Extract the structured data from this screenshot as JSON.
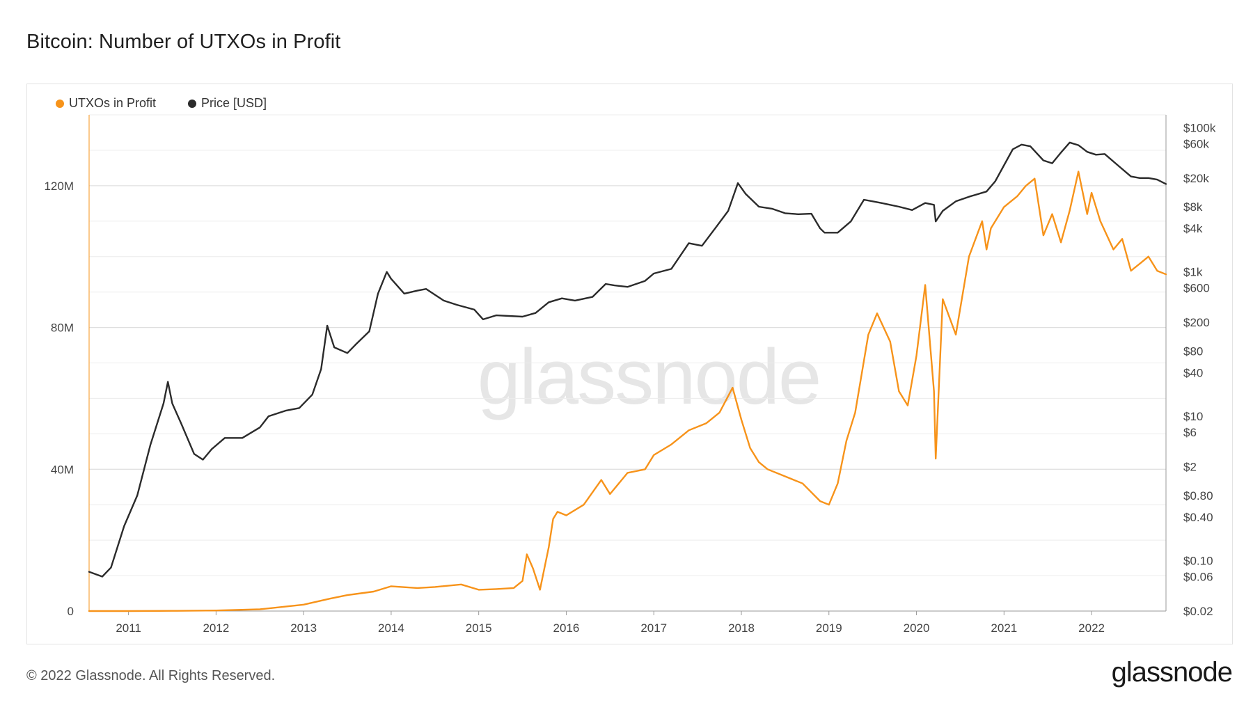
{
  "page": {
    "title": "Bitcoin: Number of UTXOs in Profit",
    "footer_copyright": "© 2022 Glassnode. All Rights Reserved.",
    "footer_logo": "glassnode",
    "watermark": "glassnode"
  },
  "colors": {
    "utxo": "#f7931a",
    "price": "#2b2b2b",
    "grid": "#ececec",
    "axis": "#9a9a9a"
  },
  "chart_data": {
    "type": "line",
    "title": "Bitcoin: Number of UTXOs in Profit",
    "legend_position": "top-left",
    "grid": true,
    "x_ticks": [
      "2011",
      "2012",
      "2013",
      "2014",
      "2015",
      "2016",
      "2017",
      "2018",
      "2019",
      "2020",
      "2021",
      "2022"
    ],
    "x_range": [
      2010.55,
      2022.85
    ],
    "y_left": {
      "scale": "linear",
      "range": [
        0,
        140000000
      ],
      "ticks": [
        0,
        40000000,
        80000000,
        120000000
      ],
      "tick_labels": [
        "0",
        "40M",
        "80M",
        "120M"
      ]
    },
    "y_right": {
      "scale": "log",
      "range": [
        0.02,
        150000
      ],
      "ticks": [
        100000,
        60000,
        20000,
        8000,
        4000,
        1000,
        600,
        200,
        80,
        40,
        10,
        6,
        2,
        0.8,
        0.4,
        0.1,
        0.06,
        0.02
      ],
      "tick_labels": [
        "$100k",
        "$60k",
        "$20k",
        "$8k",
        "$4k",
        "$1k",
        "$600",
        "$200",
        "$80",
        "$40",
        "$10",
        "$6",
        "$2",
        "$0.80",
        "$0.40",
        "$0.10",
        "$0.06",
        "$0.02"
      ]
    },
    "series": [
      {
        "name": "UTXOs in Profit",
        "axis": "left",
        "x": [
          2010.55,
          2011.0,
          2011.5,
          2012.0,
          2012.5,
          2013.0,
          2013.3,
          2013.5,
          2013.8,
          2014.0,
          2014.3,
          2014.5,
          2014.8,
          2015.0,
          2015.2,
          2015.4,
          2015.5,
          2015.55,
          2015.62,
          2015.7,
          2015.8,
          2015.85,
          2015.9,
          2016.0,
          2016.2,
          2016.4,
          2016.5,
          2016.6,
          2016.7,
          2016.9,
          2017.0,
          2017.2,
          2017.4,
          2017.6,
          2017.75,
          2017.9,
          2018.0,
          2018.1,
          2018.2,
          2018.3,
          2018.5,
          2018.7,
          2018.9,
          2019.0,
          2019.1,
          2019.2,
          2019.3,
          2019.45,
          2019.55,
          2019.7,
          2019.8,
          2019.9,
          2020.0,
          2020.1,
          2020.2,
          2020.22,
          2020.3,
          2020.45,
          2020.6,
          2020.75,
          2020.8,
          2020.85,
          2021.0,
          2021.15,
          2021.25,
          2021.35,
          2021.45,
          2021.55,
          2021.65,
          2021.75,
          2021.85,
          2021.95,
          2022.0,
          2022.1,
          2022.25,
          2022.35,
          2022.45,
          2022.55,
          2022.65,
          2022.75,
          2022.85
        ],
        "values": [
          0,
          0,
          50000,
          150000,
          500000,
          1800000,
          3500000,
          4500000,
          5500000,
          7000000,
          6500000,
          6800000,
          7500000,
          6000000,
          6200000,
          6500000,
          8500000,
          16000000,
          12000000,
          6000000,
          18000000,
          26000000,
          28000000,
          27000000,
          30000000,
          37000000,
          33000000,
          36000000,
          39000000,
          40000000,
          44000000,
          47000000,
          51000000,
          53000000,
          56000000,
          63000000,
          54000000,
          46000000,
          42000000,
          40000000,
          38000000,
          36000000,
          31000000,
          30000000,
          36000000,
          48000000,
          56000000,
          78000000,
          84000000,
          76000000,
          62000000,
          58000000,
          72000000,
          92000000,
          62000000,
          43000000,
          88000000,
          78000000,
          100000000,
          110000000,
          102000000,
          108000000,
          114000000,
          117000000,
          120000000,
          122000000,
          106000000,
          112000000,
          104000000,
          113000000,
          124000000,
          112000000,
          118000000,
          110000000,
          102000000,
          105000000,
          96000000,
          98000000,
          100000000,
          96000000,
          95000000
        ]
      },
      {
        "name": "Price [USD]",
        "axis": "right",
        "x": [
          2010.55,
          2010.7,
          2010.8,
          2010.95,
          2011.1,
          2011.25,
          2011.4,
          2011.45,
          2011.5,
          2011.6,
          2011.75,
          2011.85,
          2011.95,
          2012.1,
          2012.3,
          2012.5,
          2012.6,
          2012.8,
          2012.95,
          2013.1,
          2013.2,
          2013.27,
          2013.35,
          2013.5,
          2013.6,
          2013.75,
          2013.85,
          2013.95,
          2014.0,
          2014.15,
          2014.3,
          2014.4,
          2014.6,
          2014.75,
          2014.95,
          2015.05,
          2015.2,
          2015.5,
          2015.65,
          2015.8,
          2015.95,
          2016.1,
          2016.3,
          2016.45,
          2016.55,
          2016.7,
          2016.9,
          2017.0,
          2017.2,
          2017.4,
          2017.55,
          2017.7,
          2017.85,
          2017.96,
          2018.05,
          2018.2,
          2018.35,
          2018.5,
          2018.65,
          2018.8,
          2018.9,
          2018.95,
          2019.1,
          2019.25,
          2019.4,
          2019.5,
          2019.6,
          2019.8,
          2019.95,
          2020.1,
          2020.2,
          2020.22,
          2020.3,
          2020.45,
          2020.6,
          2020.8,
          2020.9,
          2021.0,
          2021.1,
          2021.2,
          2021.3,
          2021.45,
          2021.55,
          2021.65,
          2021.75,
          2021.85,
          2021.95,
          2022.05,
          2022.15,
          2022.3,
          2022.45,
          2022.55,
          2022.65,
          2022.75,
          2022.85
        ],
        "values": [
          0.07,
          0.06,
          0.08,
          0.3,
          0.8,
          4,
          15,
          30,
          15,
          8,
          3,
          2.5,
          3.5,
          5,
          5,
          7,
          10,
          12,
          13,
          20,
          45,
          180,
          90,
          75,
          100,
          150,
          500,
          1000,
          800,
          500,
          550,
          580,
          400,
          350,
          300,
          220,
          250,
          240,
          270,
          380,
          430,
          400,
          450,
          680,
          650,
          620,
          750,
          950,
          1100,
          2500,
          2300,
          4000,
          7000,
          17000,
          12000,
          8000,
          7500,
          6500,
          6300,
          6400,
          4000,
          3500,
          3500,
          5000,
          10000,
          9500,
          9000,
          8000,
          7200,
          9000,
          8500,
          5000,
          7000,
          9500,
          11000,
          13000,
          18000,
          30000,
          50000,
          58000,
          55000,
          35000,
          32000,
          45000,
          62000,
          57000,
          46000,
          42000,
          43000,
          30000,
          21000,
          20000,
          20000,
          19000,
          16500
        ]
      }
    ]
  }
}
